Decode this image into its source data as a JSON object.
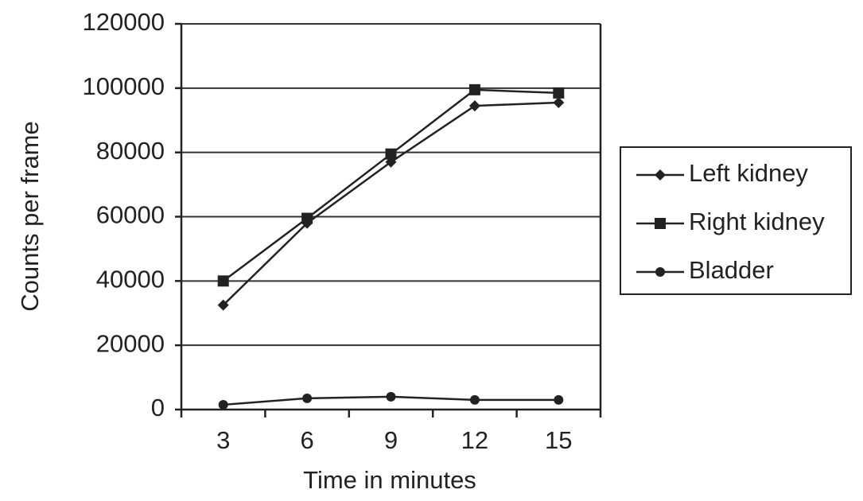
{
  "chart_data": {
    "type": "line",
    "x_label": "Time in minutes",
    "y_label": "Counts per frame",
    "categories": [
      "3",
      "6",
      "9",
      "12",
      "15"
    ],
    "series": [
      {
        "name": "Left kidney",
        "color": "#222222",
        "marker": "diamond",
        "values": [
          32500,
          58000,
          77000,
          94500,
          95500
        ]
      },
      {
        "name": "Right kidney",
        "color": "#222222",
        "marker": "square",
        "values": [
          40000,
          59500,
          79500,
          99500,
          98500
        ]
      },
      {
        "name": "Bladder",
        "color": "#222222",
        "marker": "circle",
        "values": [
          1500,
          3500,
          4000,
          3000,
          3000
        ]
      }
    ],
    "ylim": [
      0,
      120000
    ],
    "yticks": [
      0,
      20000,
      40000,
      60000,
      80000,
      100000,
      120000
    ],
    "grid": true,
    "legend": "right"
  }
}
